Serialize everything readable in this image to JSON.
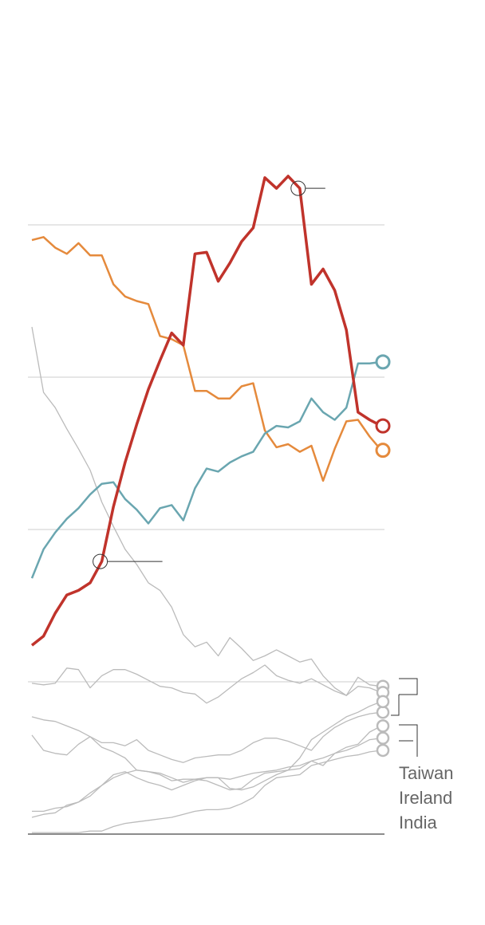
{
  "chart_data": {
    "type": "line",
    "labels": [
      "Taiwan",
      "Ireland",
      "India"
    ],
    "categories": [
      null,
      null,
      null,
      null,
      null,
      null,
      null,
      null,
      null,
      null,
      null,
      null,
      null,
      null,
      null,
      null,
      null,
      null,
      null,
      null,
      null,
      null,
      null,
      null,
      null,
      null,
      null,
      null,
      null,
      null,
      null
    ],
    "ylim": [
      0,
      4.5
    ],
    "yticks": [
      0,
      1,
      2,
      3,
      4
    ],
    "grid": true,
    "series": [
      {
        "color": "#bbbbbb",
        "values": [
          3.33,
          2.9,
          2.8,
          2.66,
          2.53,
          2.39,
          2.18,
          2.02,
          1.87,
          1.77,
          1.65,
          1.6,
          1.49,
          1.31,
          1.23,
          1.26,
          1.17,
          1.29,
          1.22,
          1.14,
          1.17,
          1.21,
          1.17,
          1.13,
          1.15,
          1.04,
          0.96,
          0.91,
          1.03,
          0.98,
          0.97
        ]
      },
      {
        "color": "#bbbbbb",
        "values": [
          0.99,
          0.98,
          0.99,
          1.09,
          1.08,
          0.96,
          1.04,
          1.08,
          1.08,
          1.05,
          1.01,
          0.97,
          0.96,
          0.93,
          0.92,
          0.86,
          0.9,
          0.96,
          1.02,
          1.06,
          1.11,
          1.04,
          1.01,
          0.99,
          1.02,
          0.98,
          0.94,
          0.91,
          0.97,
          0.96,
          0.93
        ]
      },
      {
        "color": "#bbbbbb",
        "values": [
          0.77,
          0.75,
          0.74,
          0.71,
          0.68,
          0.64,
          0.6,
          0.6,
          0.58,
          0.62,
          0.55,
          0.52,
          0.49,
          0.47,
          0.5,
          0.51,
          0.52,
          0.52,
          0.55,
          0.6,
          0.63,
          0.63,
          0.61,
          0.58,
          0.55,
          0.64,
          0.7,
          0.74,
          0.77,
          0.79,
          0.8
        ]
      },
      {
        "color": "#bbbbbb",
        "values": [
          0.65,
          0.55,
          0.53,
          0.52,
          0.59,
          0.64,
          0.57,
          0.54,
          0.5,
          0.42,
          0.41,
          0.4,
          0.37,
          0.34,
          0.36,
          0.37,
          0.37,
          0.3,
          0.29,
          0.31,
          0.35,
          0.39,
          0.42,
          0.43,
          0.48,
          0.5,
          0.53,
          0.55,
          0.58,
          0.62,
          0.63
        ]
      },
      {
        "color": "#bbbbbb",
        "values": [
          0.15,
          0.15,
          0.17,
          0.18,
          0.21,
          0.25,
          0.32,
          0.39,
          0.41,
          0.37,
          0.34,
          0.32,
          0.29,
          0.32,
          0.35,
          0.37,
          0.37,
          0.36,
          0.38,
          0.4,
          0.41,
          0.42,
          0.44,
          0.45,
          0.48,
          0.45,
          0.53,
          0.57,
          0.59,
          0.67,
          0.71
        ]
      },
      {
        "color": "#bbbbbb",
        "values": [
          0.11,
          0.13,
          0.14,
          0.19,
          0.21,
          0.27,
          0.32,
          0.37,
          0.4,
          0.42,
          0.41,
          0.39,
          0.35,
          0.36,
          0.36,
          0.35,
          0.32,
          0.29,
          0.3,
          0.36,
          0.4,
          0.41,
          0.42,
          0.5,
          0.62,
          0.67,
          0.72,
          0.77,
          0.8,
          0.84,
          0.87
        ]
      },
      {
        "color": "#bbbbbb",
        "values": [
          0.01,
          0.01,
          0.01,
          0.01,
          0.01,
          0.02,
          0.02,
          0.05,
          0.07,
          0.08,
          0.09,
          0.1,
          0.11,
          0.13,
          0.15,
          0.16,
          0.16,
          0.17,
          0.2,
          0.24,
          0.32,
          0.37,
          0.38,
          0.39,
          0.45,
          0.47,
          0.49,
          0.51,
          0.52,
          0.54,
          0.55
        ]
      },
      {
        "color": "#e58a3c",
        "values": [
          3.9,
          3.92,
          3.85,
          3.81,
          3.88,
          3.8,
          3.8,
          3.61,
          3.53,
          3.5,
          3.48,
          3.27,
          3.25,
          3.21,
          2.91,
          2.91,
          2.86,
          2.86,
          2.94,
          2.96,
          2.65,
          2.54,
          2.56,
          2.51,
          2.55,
          2.32,
          2.53,
          2.71,
          2.72,
          2.61,
          2.52
        ]
      },
      {
        "color": "#6aa6b0",
        "values": [
          1.68,
          1.87,
          1.98,
          2.07,
          2.14,
          2.23,
          2.3,
          2.31,
          2.2,
          2.13,
          2.04,
          2.14,
          2.16,
          2.06,
          2.27,
          2.4,
          2.38,
          2.44,
          2.48,
          2.51,
          2.63,
          2.68,
          2.67,
          2.71,
          2.86,
          2.77,
          2.72,
          2.8,
          3.09,
          3.09,
          3.1
        ]
      },
      {
        "color": "#c0332b",
        "values": [
          1.24,
          1.3,
          1.45,
          1.57,
          1.6,
          1.65,
          1.79,
          2.15,
          2.44,
          2.69,
          2.92,
          3.11,
          3.29,
          3.21,
          3.81,
          3.82,
          3.63,
          3.75,
          3.89,
          3.98,
          4.31,
          4.24,
          4.32,
          4.24,
          3.61,
          3.71,
          3.57,
          3.31,
          2.77,
          2.72,
          2.68
        ]
      }
    ]
  }
}
